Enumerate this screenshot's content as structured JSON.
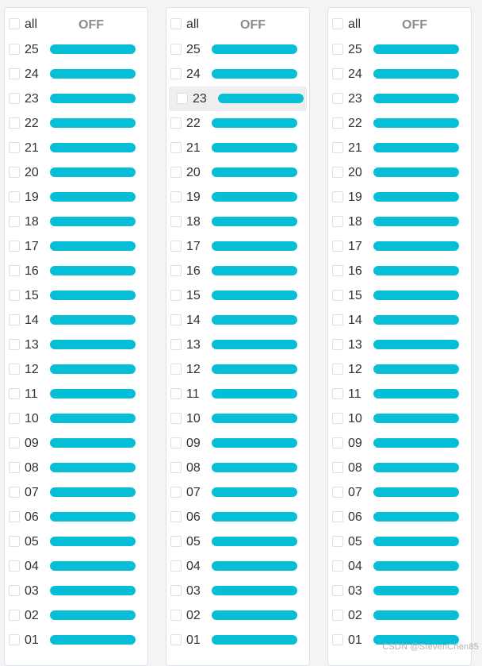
{
  "panels": [
    {
      "all_label": "all",
      "toggle_label": "OFF"
    },
    {
      "all_label": "all",
      "toggle_label": "OFF"
    },
    {
      "all_label": "all",
      "toggle_label": "OFF"
    }
  ],
  "rows": [
    "25",
    "24",
    "23",
    "22",
    "21",
    "20",
    "19",
    "18",
    "17",
    "16",
    "15",
    "14",
    "13",
    "12",
    "11",
    "10",
    "09",
    "08",
    "07",
    "06",
    "05",
    "04",
    "03",
    "02",
    "01"
  ],
  "hovered": {
    "panel": 1,
    "row": 2
  },
  "colors": {
    "bar": "#06bfd6",
    "off_text": "#8c8c8c",
    "checkbox_border": "#dcdfe6"
  },
  "watermark": "CSDN @StevenChen85"
}
